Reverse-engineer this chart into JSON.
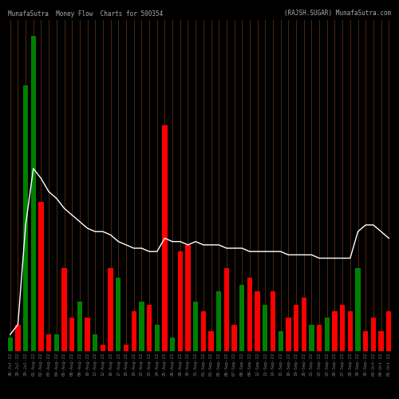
{
  "title_left": "MunafaSutra  Money Flow  Charts for 500354",
  "title_right": "(RAJSH.SUGAR) MunafaSutra.com",
  "background_color": "#000000",
  "bar_colors_pattern": [
    "green",
    "red",
    "green",
    "green",
    "red",
    "red",
    "green",
    "red",
    "red",
    "green",
    "red",
    "green",
    "red",
    "red",
    "green",
    "red",
    "red",
    "green",
    "red",
    "green",
    "red",
    "green",
    "red",
    "red",
    "green",
    "red",
    "red",
    "green",
    "red",
    "red",
    "green",
    "red",
    "red",
    "green",
    "red",
    "green",
    "red",
    "red",
    "red",
    "green",
    "red",
    "green",
    "red",
    "red",
    "red",
    "green",
    "red",
    "red",
    "red",
    "red"
  ],
  "bar_heights": [
    4,
    8,
    80,
    95,
    45,
    5,
    5,
    25,
    10,
    15,
    10,
    5,
    2,
    25,
    22,
    2,
    12,
    15,
    14,
    8,
    68,
    4,
    30,
    32,
    15,
    12,
    6,
    18,
    25,
    8,
    20,
    22,
    18,
    14,
    18,
    6,
    10,
    14,
    16,
    8,
    8,
    10,
    12,
    14,
    12,
    25,
    6,
    10,
    6,
    12
  ],
  "line_values": [
    5,
    8,
    38,
    55,
    52,
    48,
    46,
    43,
    41,
    39,
    37,
    36,
    36,
    35,
    33,
    32,
    31,
    31,
    30,
    30,
    34,
    33,
    33,
    32,
    33,
    32,
    32,
    32,
    31,
    31,
    31,
    30,
    30,
    30,
    30,
    30,
    29,
    29,
    29,
    29,
    28,
    28,
    28,
    28,
    28,
    36,
    38,
    38,
    36,
    34
  ],
  "grid_color": "#8B4513",
  "line_color": "#ffffff",
  "x_labels": [
    "26-Jul-22",
    "28-Jul-22",
    "29-Jul-22",
    "01-Aug-22",
    "02-Aug-22",
    "03-Aug-22",
    "04-Aug-22",
    "05-Aug-22",
    "08-Aug-22",
    "09-Aug-22",
    "10-Aug-22",
    "11-Aug-22",
    "12-Aug-22",
    "16-Aug-22",
    "17-Aug-22",
    "18-Aug-22",
    "19-Aug-22",
    "22-Aug-22",
    "23-Aug-22",
    "24-Aug-22",
    "25-Aug-22",
    "26-Aug-22",
    "29-Aug-22",
    "30-Aug-22",
    "31-Aug-22",
    "01-Sep-22",
    "02-Sep-22",
    "05-Sep-22",
    "06-Sep-22",
    "07-Sep-22",
    "08-Sep-22",
    "09-Sep-22",
    "12-Sep-22",
    "13-Sep-22",
    "14-Sep-22",
    "15-Sep-22",
    "16-Sep-22",
    "19-Sep-22",
    "20-Sep-22",
    "21-Sep-22",
    "22-Sep-22",
    "23-Sep-22",
    "26-Sep-22",
    "27-Sep-22",
    "28-Sep-22",
    "29-Sep-22",
    "30-Sep-22",
    "03-Oct-22",
    "04-Oct-22",
    "05-Oct-22"
  ]
}
